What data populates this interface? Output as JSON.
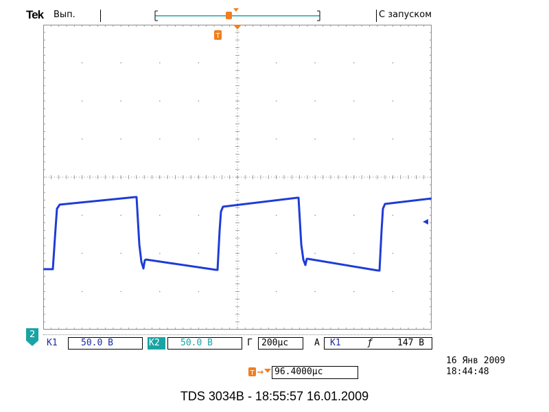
{
  "header": {
    "brand": "Tek",
    "run_state": "Вып.",
    "trigger_mode": "С запуском"
  },
  "channel_marker": "2",
  "status_bar": {
    "ch1_label": "K1",
    "ch1_scale": "50.0 В",
    "ch2_label": "K2",
    "ch2_scale": "50.0 В",
    "timebase_label": "Г",
    "timebase": "200µс",
    "trigger_type": "A",
    "trigger_source": "K1",
    "trigger_slope": "ƒ",
    "trigger_level": "147 В"
  },
  "trigger_position": "96.4000µс",
  "timestamp": {
    "date": "16 Янв 2009",
    "time": "18:44:48"
  },
  "footer": "TDS 3034B - 18:55:57   16.01.2009",
  "colors": {
    "trace": "#1f3bd6",
    "trigger": "#f07e1e",
    "channel2": "#1aa3a3",
    "grid": "#8a8a8a"
  }
}
